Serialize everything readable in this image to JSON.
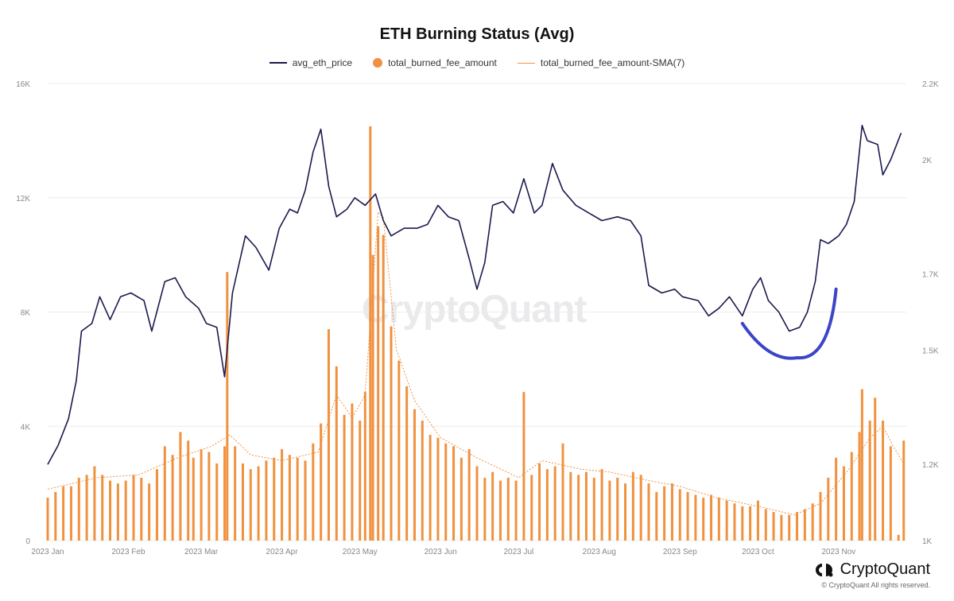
{
  "chart_data": {
    "type": "bar",
    "title": "ETH Burning Status (Avg)",
    "legend_placement": "top-center",
    "grid": true,
    "x_start": "2023-01-01",
    "x_end": "2023-11-27",
    "x_ticks": [
      {
        "date": "2023-01-01",
        "label": "2023 Jan"
      },
      {
        "date": "2023-02-01",
        "label": "2023 Feb"
      },
      {
        "date": "2023-03-01",
        "label": "2023 Mar"
      },
      {
        "date": "2023-04-01",
        "label": "2023 Apr"
      },
      {
        "date": "2023-05-01",
        "label": "2023 May"
      },
      {
        "date": "2023-06-01",
        "label": "2023 Jun"
      },
      {
        "date": "2023-07-01",
        "label": "2023 Jul"
      },
      {
        "date": "2023-08-01",
        "label": "2023 Aug"
      },
      {
        "date": "2023-09-01",
        "label": "2023 Sep"
      },
      {
        "date": "2023-10-01",
        "label": "2023 Oct"
      },
      {
        "date": "2023-11-01",
        "label": "2023 Nov"
      }
    ],
    "y_left": {
      "ylim": [
        0,
        16000
      ],
      "ticks": [
        0,
        4000,
        8000,
        12000,
        16000
      ],
      "tick_labels": [
        "0",
        "4K",
        "8K",
        "12K",
        "16K"
      ]
    },
    "y_right": {
      "ylim": [
        1000,
        2200
      ],
      "ticks": [
        1000,
        1200,
        1500,
        1700,
        2000,
        2200
      ],
      "tick_labels": [
        "1K",
        "1.2K",
        "1.5K",
        "1.7K",
        "2K",
        "2.2K"
      ]
    },
    "series": [
      {
        "name": "avg_eth_price",
        "type": "line",
        "axis": "right",
        "color": "#1a1a4e",
        "points": [
          [
            "2023-01-01",
            1200
          ],
          [
            "2023-01-05",
            1250
          ],
          [
            "2023-01-09",
            1320
          ],
          [
            "2023-01-12",
            1420
          ],
          [
            "2023-01-14",
            1550
          ],
          [
            "2023-01-18",
            1570
          ],
          [
            "2023-01-21",
            1640
          ],
          [
            "2023-01-25",
            1580
          ],
          [
            "2023-01-29",
            1640
          ],
          [
            "2023-02-02",
            1650
          ],
          [
            "2023-02-07",
            1630
          ],
          [
            "2023-02-10",
            1550
          ],
          [
            "2023-02-15",
            1680
          ],
          [
            "2023-02-19",
            1690
          ],
          [
            "2023-02-23",
            1640
          ],
          [
            "2023-02-28",
            1610
          ],
          [
            "2023-03-03",
            1570
          ],
          [
            "2023-03-07",
            1560
          ],
          [
            "2023-03-10",
            1430
          ],
          [
            "2023-03-13",
            1650
          ],
          [
            "2023-03-18",
            1800
          ],
          [
            "2023-03-22",
            1770
          ],
          [
            "2023-03-27",
            1710
          ],
          [
            "2023-03-31",
            1820
          ],
          [
            "2023-04-04",
            1870
          ],
          [
            "2023-04-07",
            1860
          ],
          [
            "2023-04-10",
            1920
          ],
          [
            "2023-04-13",
            2020
          ],
          [
            "2023-04-16",
            2080
          ],
          [
            "2023-04-19",
            1930
          ],
          [
            "2023-04-22",
            1850
          ],
          [
            "2023-04-26",
            1870
          ],
          [
            "2023-04-29",
            1900
          ],
          [
            "2023-05-03",
            1880
          ],
          [
            "2023-05-07",
            1910
          ],
          [
            "2023-05-10",
            1840
          ],
          [
            "2023-05-13",
            1800
          ],
          [
            "2023-05-18",
            1820
          ],
          [
            "2023-05-23",
            1820
          ],
          [
            "2023-05-27",
            1830
          ],
          [
            "2023-05-31",
            1880
          ],
          [
            "2023-06-04",
            1850
          ],
          [
            "2023-06-08",
            1840
          ],
          [
            "2023-06-12",
            1740
          ],
          [
            "2023-06-15",
            1660
          ],
          [
            "2023-06-18",
            1730
          ],
          [
            "2023-06-21",
            1880
          ],
          [
            "2023-06-25",
            1890
          ],
          [
            "2023-06-29",
            1860
          ],
          [
            "2023-07-03",
            1950
          ],
          [
            "2023-07-07",
            1860
          ],
          [
            "2023-07-10",
            1880
          ],
          [
            "2023-07-14",
            1990
          ],
          [
            "2023-07-18",
            1920
          ],
          [
            "2023-07-23",
            1880
          ],
          [
            "2023-07-28",
            1860
          ],
          [
            "2023-08-02",
            1840
          ],
          [
            "2023-08-08",
            1850
          ],
          [
            "2023-08-13",
            1840
          ],
          [
            "2023-08-17",
            1800
          ],
          [
            "2023-08-20",
            1670
          ],
          [
            "2023-08-25",
            1650
          ],
          [
            "2023-08-30",
            1660
          ],
          [
            "2023-09-02",
            1640
          ],
          [
            "2023-09-08",
            1630
          ],
          [
            "2023-09-12",
            1590
          ],
          [
            "2023-09-16",
            1610
          ],
          [
            "2023-09-20",
            1640
          ],
          [
            "2023-09-25",
            1590
          ],
          [
            "2023-09-29",
            1660
          ],
          [
            "2023-10-02",
            1690
          ],
          [
            "2023-10-05",
            1630
          ],
          [
            "2023-10-09",
            1600
          ],
          [
            "2023-10-13",
            1550
          ],
          [
            "2023-10-17",
            1560
          ],
          [
            "2023-10-20",
            1600
          ],
          [
            "2023-10-23",
            1680
          ],
          [
            "2023-10-25",
            1790
          ],
          [
            "2023-10-28",
            1780
          ],
          [
            "2023-11-01",
            1800
          ],
          [
            "2023-11-04",
            1830
          ],
          [
            "2023-11-07",
            1890
          ],
          [
            "2023-11-10",
            2090
          ],
          [
            "2023-11-12",
            2050
          ],
          [
            "2023-11-16",
            2040
          ],
          [
            "2023-11-18",
            1960
          ],
          [
            "2023-11-21",
            2000
          ],
          [
            "2023-11-25",
            2070
          ]
        ]
      },
      {
        "name": "total_burned_fee_amount",
        "type": "bar",
        "axis": "left",
        "color": "#f0913f",
        "points": [
          [
            "2023-01-01",
            1500
          ],
          [
            "2023-01-04",
            1700
          ],
          [
            "2023-01-07",
            1900
          ],
          [
            "2023-01-10",
            1900
          ],
          [
            "2023-01-13",
            2200
          ],
          [
            "2023-01-16",
            2300
          ],
          [
            "2023-01-19",
            2600
          ],
          [
            "2023-01-22",
            2300
          ],
          [
            "2023-01-25",
            2100
          ],
          [
            "2023-01-28",
            2000
          ],
          [
            "2023-01-31",
            2100
          ],
          [
            "2023-02-03",
            2300
          ],
          [
            "2023-02-06",
            2200
          ],
          [
            "2023-02-09",
            2000
          ],
          [
            "2023-02-12",
            2500
          ],
          [
            "2023-02-15",
            3300
          ],
          [
            "2023-02-18",
            3000
          ],
          [
            "2023-02-21",
            3800
          ],
          [
            "2023-02-24",
            3500
          ],
          [
            "2023-02-26",
            2900
          ],
          [
            "2023-03-01",
            3200
          ],
          [
            "2023-03-04",
            3100
          ],
          [
            "2023-03-07",
            2700
          ],
          [
            "2023-03-10",
            3300
          ],
          [
            "2023-03-11",
            9400
          ],
          [
            "2023-03-14",
            3300
          ],
          [
            "2023-03-17",
            2700
          ],
          [
            "2023-03-20",
            2500
          ],
          [
            "2023-03-23",
            2600
          ],
          [
            "2023-03-26",
            2800
          ],
          [
            "2023-03-29",
            2900
          ],
          [
            "2023-04-01",
            3200
          ],
          [
            "2023-04-04",
            3000
          ],
          [
            "2023-04-07",
            2900
          ],
          [
            "2023-04-10",
            2800
          ],
          [
            "2023-04-13",
            3400
          ],
          [
            "2023-04-16",
            4100
          ],
          [
            "2023-04-19",
            7400
          ],
          [
            "2023-04-22",
            6100
          ],
          [
            "2023-04-25",
            4400
          ],
          [
            "2023-04-28",
            4800
          ],
          [
            "2023-05-01",
            4200
          ],
          [
            "2023-05-03",
            5200
          ],
          [
            "2023-05-05",
            14500
          ],
          [
            "2023-05-06",
            10000
          ],
          [
            "2023-05-08",
            11000
          ],
          [
            "2023-05-10",
            10700
          ],
          [
            "2023-05-13",
            7500
          ],
          [
            "2023-05-16",
            6300
          ],
          [
            "2023-05-19",
            5400
          ],
          [
            "2023-05-22",
            4600
          ],
          [
            "2023-05-25",
            4200
          ],
          [
            "2023-05-28",
            3700
          ],
          [
            "2023-05-31",
            3600
          ],
          [
            "2023-06-03",
            3400
          ],
          [
            "2023-06-06",
            3300
          ],
          [
            "2023-06-09",
            2900
          ],
          [
            "2023-06-12",
            3200
          ],
          [
            "2023-06-15",
            2600
          ],
          [
            "2023-06-18",
            2200
          ],
          [
            "2023-06-21",
            2400
          ],
          [
            "2023-06-24",
            2100
          ],
          [
            "2023-06-27",
            2200
          ],
          [
            "2023-06-30",
            2100
          ],
          [
            "2023-07-03",
            5200
          ],
          [
            "2023-07-06",
            2300
          ],
          [
            "2023-07-09",
            2700
          ],
          [
            "2023-07-12",
            2500
          ],
          [
            "2023-07-15",
            2600
          ],
          [
            "2023-07-18",
            3400
          ],
          [
            "2023-07-21",
            2400
          ],
          [
            "2023-07-24",
            2300
          ],
          [
            "2023-07-27",
            2400
          ],
          [
            "2023-07-30",
            2200
          ],
          [
            "2023-08-02",
            2500
          ],
          [
            "2023-08-05",
            2100
          ],
          [
            "2023-08-08",
            2200
          ],
          [
            "2023-08-11",
            2000
          ],
          [
            "2023-08-14",
            2400
          ],
          [
            "2023-08-17",
            2300
          ],
          [
            "2023-08-20",
            2000
          ],
          [
            "2023-08-23",
            1700
          ],
          [
            "2023-08-26",
            1900
          ],
          [
            "2023-08-29",
            2000
          ],
          [
            "2023-09-01",
            1800
          ],
          [
            "2023-09-04",
            1700
          ],
          [
            "2023-09-07",
            1600
          ],
          [
            "2023-09-10",
            1500
          ],
          [
            "2023-09-13",
            1600
          ],
          [
            "2023-09-16",
            1500
          ],
          [
            "2023-09-19",
            1400
          ],
          [
            "2023-09-22",
            1300
          ],
          [
            "2023-09-25",
            1200
          ],
          [
            "2023-09-28",
            1200
          ],
          [
            "2023-10-01",
            1400
          ],
          [
            "2023-10-04",
            1100
          ],
          [
            "2023-10-07",
            1000
          ],
          [
            "2023-10-10",
            900
          ],
          [
            "2023-10-13",
            900
          ],
          [
            "2023-10-16",
            1000
          ],
          [
            "2023-10-19",
            1100
          ],
          [
            "2023-10-22",
            1300
          ],
          [
            "2023-10-25",
            1700
          ],
          [
            "2023-10-28",
            2200
          ],
          [
            "2023-10-31",
            2900
          ],
          [
            "2023-11-03",
            2600
          ],
          [
            "2023-11-06",
            3100
          ],
          [
            "2023-11-09",
            3800
          ],
          [
            "2023-11-10",
            5300
          ],
          [
            "2023-11-13",
            4200
          ],
          [
            "2023-11-15",
            5000
          ],
          [
            "2023-11-18",
            4200
          ],
          [
            "2023-11-21",
            3300
          ],
          [
            "2023-11-24",
            200
          ],
          [
            "2023-11-26",
            3500
          ]
        ]
      },
      {
        "name": "total_burned_fee_amount-SMA(7)",
        "type": "line",
        "axis": "left",
        "color": "#f0913f",
        "style": "dotted",
        "points": [
          [
            "2023-01-01",
            1800
          ],
          [
            "2023-01-20",
            2200
          ],
          [
            "2023-02-05",
            2300
          ],
          [
            "2023-02-20",
            2900
          ],
          [
            "2023-03-05",
            3300
          ],
          [
            "2023-03-12",
            3700
          ],
          [
            "2023-03-20",
            3000
          ],
          [
            "2023-04-01",
            2800
          ],
          [
            "2023-04-15",
            3100
          ],
          [
            "2023-04-22",
            5100
          ],
          [
            "2023-04-28",
            4300
          ],
          [
            "2023-05-03",
            5100
          ],
          [
            "2023-05-08",
            11500
          ],
          [
            "2023-05-10",
            11300
          ],
          [
            "2023-05-15",
            6700
          ],
          [
            "2023-05-22",
            4900
          ],
          [
            "2023-06-01",
            3600
          ],
          [
            "2023-06-15",
            2900
          ],
          [
            "2023-07-01",
            2200
          ],
          [
            "2023-07-10",
            2800
          ],
          [
            "2023-07-25",
            2500
          ],
          [
            "2023-08-05",
            2400
          ],
          [
            "2023-08-20",
            2100
          ],
          [
            "2023-09-01",
            1900
          ],
          [
            "2023-09-15",
            1500
          ],
          [
            "2023-10-01",
            1200
          ],
          [
            "2023-10-15",
            900
          ],
          [
            "2023-10-25",
            1300
          ],
          [
            "2023-11-05",
            2500
          ],
          [
            "2023-11-13",
            3600
          ],
          [
            "2023-11-18",
            4000
          ],
          [
            "2023-11-22",
            3300
          ],
          [
            "2023-11-26",
            2700
          ]
        ]
      }
    ],
    "annotation": {
      "type": "hand-drawn-curve",
      "color": "#3d44c8",
      "points": [
        [
          "2023-09-25",
          1570
        ],
        [
          "2023-10-16",
          1480
        ],
        [
          "2023-10-31",
          1660
        ]
      ]
    }
  },
  "watermark": "CryptoQuant",
  "brand": {
    "name": "CryptoQuant",
    "copyright": "© CryptoQuant All rights reserved."
  }
}
